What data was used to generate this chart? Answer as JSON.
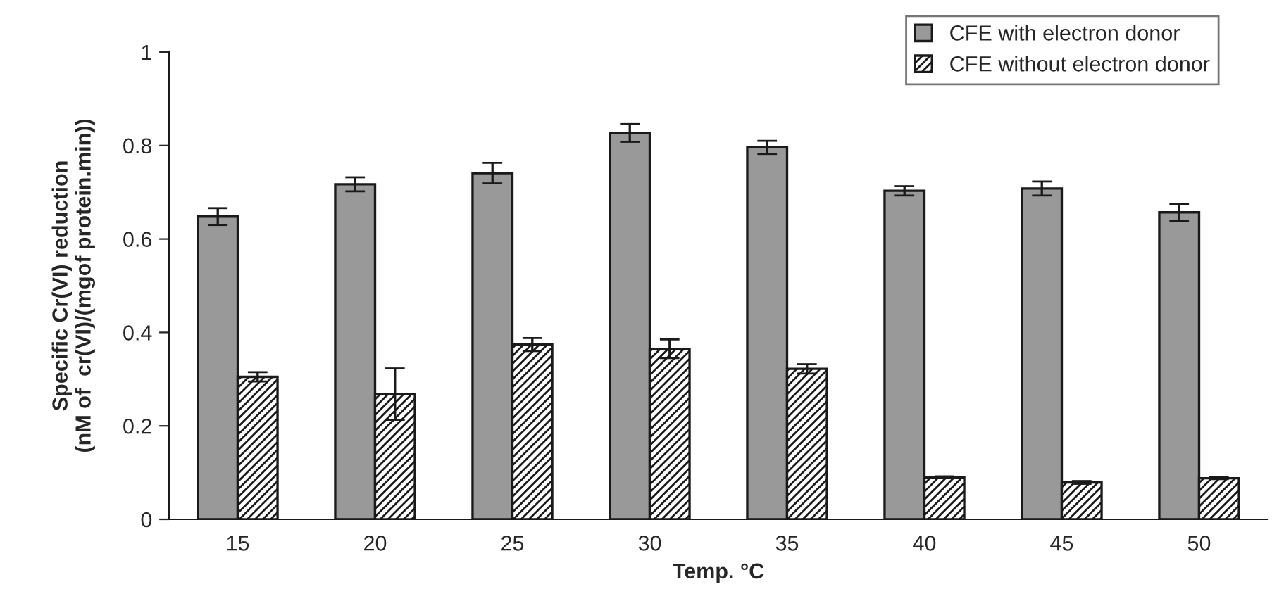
{
  "chart_data": {
    "type": "bar",
    "xlabel": "Temp. °C",
    "ylabel": "Specific Cr(VI) reduction\n(nM of  cr(VI)/(mgof protein.min))",
    "categories": [
      "15",
      "20",
      "25",
      "30",
      "35",
      "40",
      "45",
      "50"
    ],
    "series": [
      {
        "name": "CFE with electron donor",
        "color": "#999999",
        "values": [
          0.648,
          0.717,
          0.741,
          0.827,
          0.796,
          0.703,
          0.708,
          0.657
        ],
        "errors": [
          0.018,
          0.015,
          0.022,
          0.019,
          0.014,
          0.01,
          0.015,
          0.018
        ]
      },
      {
        "name": "CFE without electron donor",
        "color": "#1a1a1a",
        "values": [
          0.305,
          0.268,
          0.374,
          0.365,
          0.322,
          0.09,
          0.079,
          0.088
        ],
        "errors": [
          0.01,
          0.055,
          0.014,
          0.02,
          0.01,
          0.002,
          0.003,
          0.002
        ]
      }
    ],
    "ylim": [
      0,
      1
    ],
    "yticks": [
      0,
      0.2,
      0.4,
      0.6,
      0.8,
      {
        "value": 1,
        "label": "1"
      }
    ],
    "grid": false,
    "legend": "top right"
  }
}
